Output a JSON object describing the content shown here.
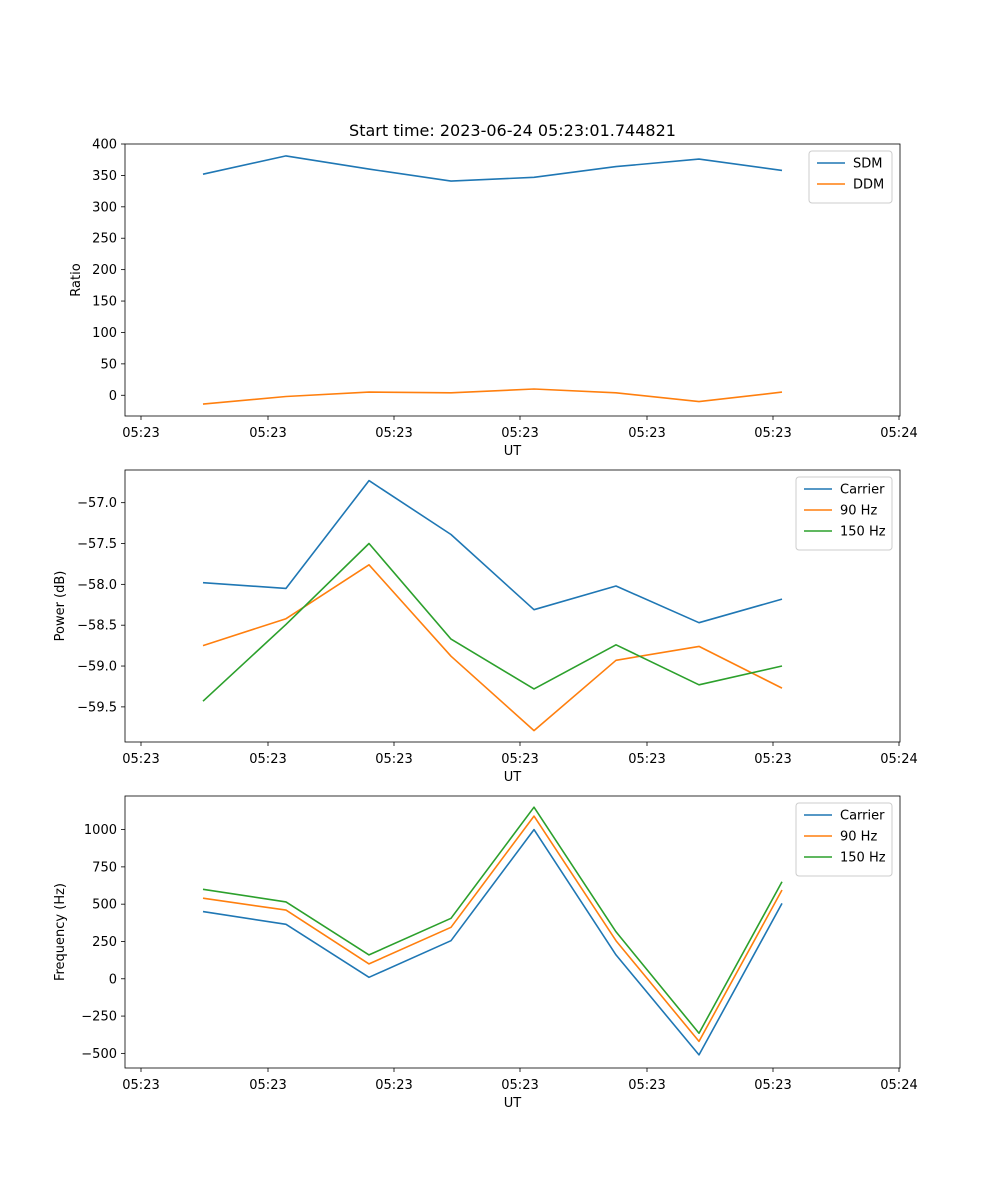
{
  "chart_data": [
    {
      "type": "line",
      "title": "Start time: 2023-06-24 05:23:01.744821",
      "xlabel": "UT",
      "ylabel": "Ratio",
      "x_tick_labels": [
        "05:23",
        "05:23",
        "05:23",
        "05:23",
        "05:23",
        "05:23",
        "05:23"
      ],
      "x_tick_label_last": "05:24",
      "ylim": [
        -33,
        400
      ],
      "yticks": [
        0,
        50,
        100,
        150,
        200,
        250,
        300,
        350,
        400
      ],
      "legend": "top-right",
      "series": [
        {
          "name": "SDM",
          "color": "#1f77b4",
          "values": [
            352,
            381,
            360,
            341,
            347,
            364,
            376,
            358
          ]
        },
        {
          "name": "DDM",
          "color": "#ff7f0e",
          "values": [
            -14,
            -2,
            5,
            4,
            10,
            4,
            -10,
            5
          ]
        }
      ]
    },
    {
      "type": "line",
      "title": "",
      "xlabel": "UT",
      "ylabel": "Power (dB)",
      "x_tick_labels": [
        "05:23",
        "05:23",
        "05:23",
        "05:23",
        "05:23",
        "05:23",
        "05:23"
      ],
      "x_tick_label_last": "05:24",
      "ylim": [
        -59.93,
        -56.6
      ],
      "yticks": [
        -59.5,
        -59.0,
        -58.5,
        -58.0,
        -57.5,
        -57.0
      ],
      "ytick_labels": [
        "−59.5",
        "−59.0",
        "−58.5",
        "−58.0",
        "−57.5",
        "−57.0"
      ],
      "legend": "top-right",
      "series": [
        {
          "name": "Carrier",
          "color": "#1f77b4",
          "values": [
            -57.98,
            -58.05,
            -56.73,
            -57.39,
            -58.31,
            -58.02,
            -58.47,
            -58.18
          ]
        },
        {
          "name": "90 Hz",
          "color": "#ff7f0e",
          "values": [
            -58.75,
            -58.42,
            -57.76,
            -58.88,
            -59.79,
            -58.93,
            -58.76,
            -59.27
          ]
        },
        {
          "name": "150 Hz",
          "color": "#2ca02c",
          "values": [
            -59.43,
            -58.49,
            -57.5,
            -58.67,
            -59.28,
            -58.74,
            -59.23,
            -59.0
          ]
        }
      ]
    },
    {
      "type": "line",
      "title": "",
      "xlabel": "UT",
      "ylabel": "Frequency (Hz)",
      "x_tick_labels": [
        "05:23",
        "05:23",
        "05:23",
        "05:23",
        "05:23",
        "05:23",
        "05:23"
      ],
      "x_tick_label_last": "05:24",
      "ylim": [
        -598,
        1225
      ],
      "yticks": [
        -500,
        -250,
        0,
        250,
        500,
        750,
        1000
      ],
      "ytick_labels": [
        "−500",
        "−250",
        "0",
        "250",
        "500",
        "750",
        "1000"
      ],
      "legend": "top-right",
      "series": [
        {
          "name": "Carrier",
          "color": "#1f77b4",
          "values": [
            450,
            365,
            10,
            255,
            1000,
            160,
            -510,
            505
          ]
        },
        {
          "name": "90 Hz",
          "color": "#ff7f0e",
          "values": [
            540,
            460,
            100,
            345,
            1090,
            255,
            -420,
            595
          ]
        },
        {
          "name": "150 Hz",
          "color": "#2ca02c",
          "values": [
            600,
            515,
            160,
            405,
            1150,
            315,
            -365,
            650
          ]
        }
      ]
    }
  ]
}
